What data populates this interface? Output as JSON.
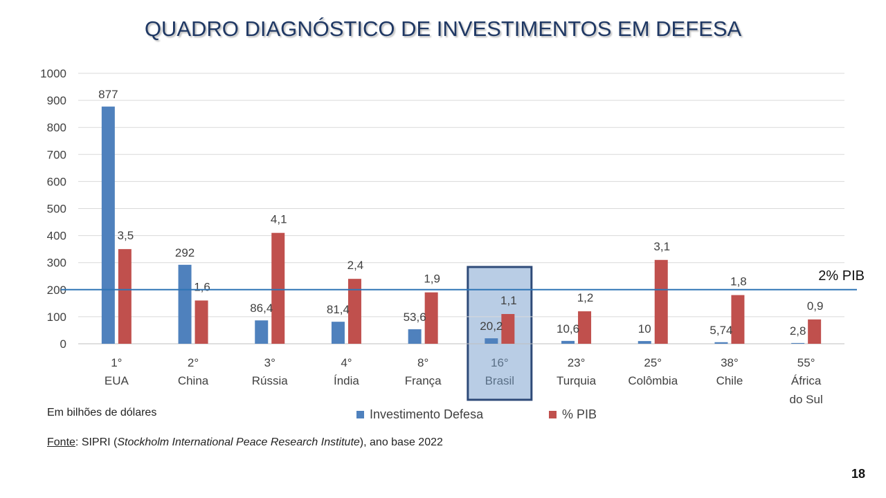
{
  "page": {
    "title": "QUADRO DIAGNÓSTICO DE INVESTIMENTOS EM DEFESA",
    "page_number": "18"
  },
  "colors": {
    "investimento": "#4f81bd",
    "pib": "#c0504d",
    "highlight_fill": "#b9cde5",
    "highlight_border": "#2e4a78",
    "reference_line": "#2e75b6"
  },
  "footnote": "Em bilhões de dólares",
  "source": {
    "label": "Fonte",
    "text_before": ": SIPRI (",
    "italic": "Stockholm International Peace Research Institute",
    "text_after": "), ano base 2022"
  },
  "chart_data": {
    "type": "bar",
    "title": "QUADRO DIAGNÓSTICO DE INVESTIMENTOS EM DEFESA",
    "xlabel": "",
    "ylabel": "",
    "ylim": [
      0,
      1000
    ],
    "yticks": [
      0,
      100,
      200,
      300,
      400,
      500,
      600,
      700,
      800,
      900,
      1000
    ],
    "grid": true,
    "categories": [
      {
        "rank": "1°",
        "name": [
          "EUA"
        ]
      },
      {
        "rank": "2°",
        "name": [
          "China"
        ]
      },
      {
        "rank": "3°",
        "name": [
          "Rússia"
        ]
      },
      {
        "rank": "4°",
        "name": [
          "Índia"
        ]
      },
      {
        "rank": "8°",
        "name": [
          "França"
        ]
      },
      {
        "rank": "16°",
        "name": [
          "Brasil"
        ]
      },
      {
        "rank": "23°",
        "name": [
          "Turquia"
        ]
      },
      {
        "rank": "25°",
        "name": [
          "Colômbia"
        ]
      },
      {
        "rank": "38°",
        "name": [
          "Chile"
        ]
      },
      {
        "rank": "55°",
        "name": [
          "África",
          "do Sul"
        ]
      }
    ],
    "series": [
      {
        "name": "Investimento Defesa",
        "values": [
          877,
          292,
          86.4,
          81.4,
          53.6,
          20.2,
          10.6,
          10,
          5.74,
          2.8
        ],
        "labels": [
          "877",
          "292",
          "86,4",
          "81,4",
          "53,6",
          "20,2",
          "10,6",
          "10",
          "5,74",
          "2,8"
        ]
      },
      {
        "name": "% PIB",
        "values": [
          3.5,
          1.6,
          4.1,
          2.4,
          1.9,
          1.1,
          1.2,
          3.1,
          1.8,
          0.9
        ],
        "labels": [
          "3,5",
          "1,6",
          "4,1",
          "2,4",
          "1,9",
          "1,1",
          "1,2",
          "3,1",
          "1,8",
          "0,9"
        ],
        "plot_scale": 100
      }
    ],
    "reference_line": {
      "value": 200,
      "label": "2% PIB"
    },
    "highlight_category": "Brasil",
    "legend_position": "bottom"
  }
}
